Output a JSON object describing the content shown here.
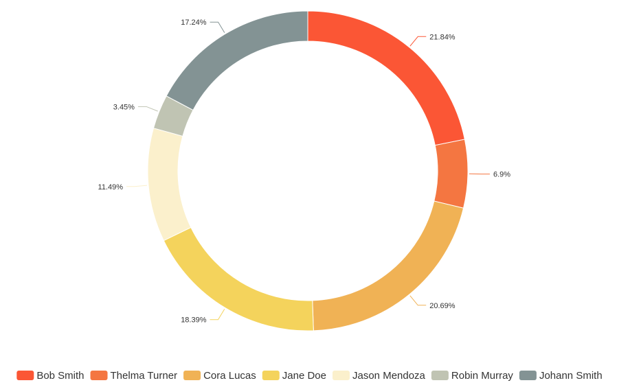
{
  "chart_data": {
    "type": "pie",
    "style": "donut",
    "title": "",
    "legend_position": "bottom",
    "slices": [
      {
        "name": "Bob Smith",
        "value": 21.84,
        "label": "21.84%",
        "color": "#fb5635"
      },
      {
        "name": "Thelma Turner",
        "value": 6.9,
        "label": "6.9%",
        "color": "#f47641"
      },
      {
        "name": "Cora Lucas",
        "value": 20.69,
        "label": "20.69%",
        "color": "#f0b255"
      },
      {
        "name": "Jane Doe",
        "value": 18.39,
        "label": "18.39%",
        "color": "#f4d35c"
      },
      {
        "name": "Jason Mendoza",
        "value": 11.49,
        "label": "11.49%",
        "color": "#fbf0cc"
      },
      {
        "name": "Robin Murray",
        "value": 3.45,
        "label": "3.45%",
        "color": "#c0c4b3"
      },
      {
        "name": "Johann Smith",
        "value": 17.24,
        "label": "17.24%",
        "color": "#839394"
      }
    ]
  }
}
